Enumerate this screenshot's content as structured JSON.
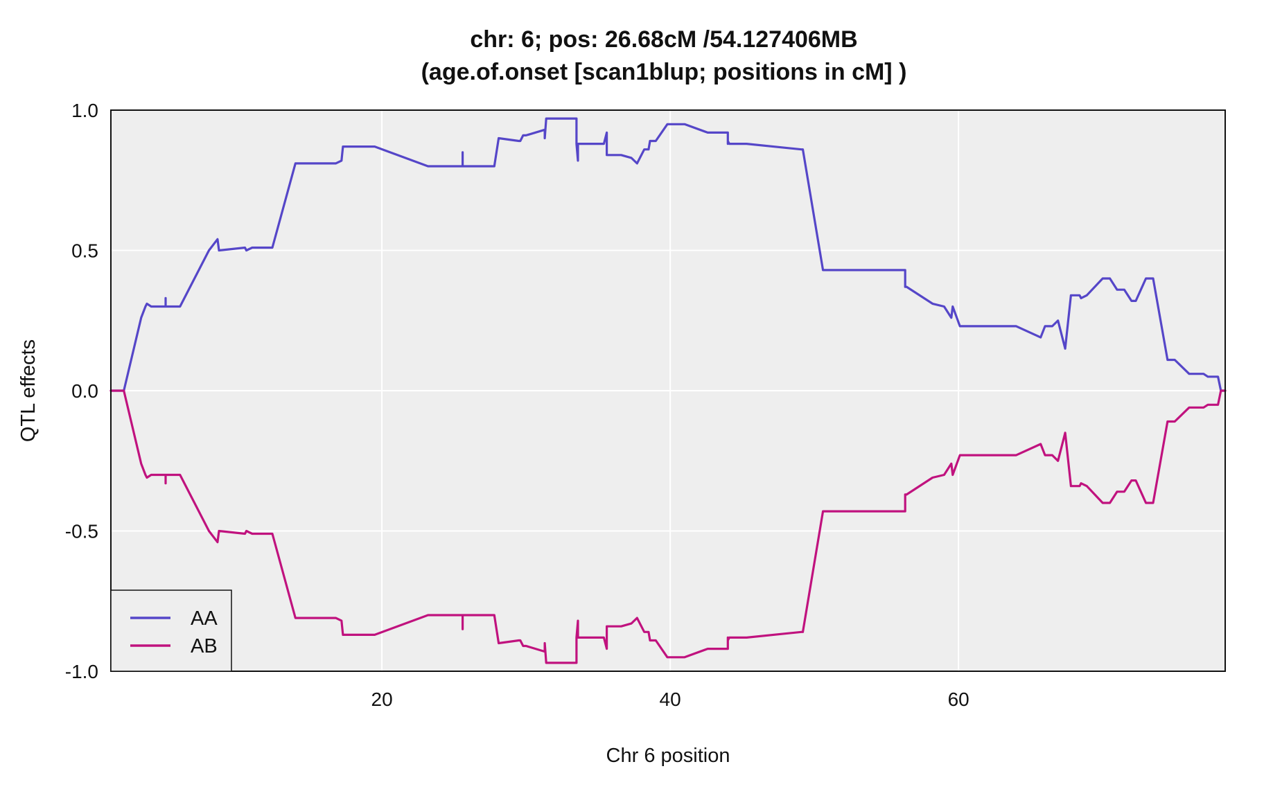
{
  "chart_data": {
    "type": "line",
    "title": "chr: 6; pos: 26.68cM /54.127406MB",
    "subtitle": "(age.of.onset [scan1blup; positions in cM] )",
    "xlabel": "Chr 6 position",
    "ylabel": "QTL effects",
    "xlim": [
      1.2,
      78.5
    ],
    "ylim": [
      -1.0,
      1.0
    ],
    "x_ticks": [
      20,
      40,
      60
    ],
    "x_tick_labels": [
      "20",
      "40",
      "60"
    ],
    "y_ticks": [
      -1.0,
      -0.5,
      0.0,
      0.5,
      1.0
    ],
    "y_tick_labels": [
      "-1.0",
      "-0.5",
      "0.0",
      "0.5",
      "1.0"
    ],
    "grid": true,
    "background": "#eeeeee",
    "legend": {
      "position": "bottom-left",
      "entries": [
        "AA",
        "AB"
      ]
    },
    "series": [
      {
        "name": "AA",
        "color": "#5546c8",
        "x": [
          1.2,
          2.1,
          3.3,
          3.6,
          3.7,
          4.0,
          5.0,
          5.0,
          5.0,
          6.0,
          8.0,
          8.6,
          8.7,
          10.5,
          10.6,
          11.0,
          11.4,
          12.4,
          14.0,
          14.4,
          14.6,
          16.8,
          17.2,
          17.3,
          19.5,
          23.2,
          25.6,
          25.6,
          25.6,
          27.8,
          28.1,
          29.5,
          29.6,
          29.8,
          30.0,
          31.3,
          31.3,
          31.4,
          33.5,
          33.5,
          33.6,
          33.6,
          33.7,
          34.0,
          35.4,
          35.6,
          35.6,
          36.3,
          36.6,
          37.3,
          37.7,
          38.2,
          38.5,
          38.6,
          39.0,
          39.8,
          40.2,
          40.6,
          41.0,
          42.6,
          44.0,
          44.0,
          44.0,
          44.1,
          44.5,
          45.3,
          49.1,
          49.2,
          50.6,
          51.1,
          51.2,
          51.4,
          51.6,
          52.0,
          54.5,
          56.3,
          56.3,
          56.4,
          58.2,
          59.0,
          59.5,
          59.6,
          60.1,
          61.7,
          61.9,
          62.3,
          62.6,
          64.0,
          65.7,
          66.0,
          66.3,
          66.4,
          66.5,
          66.9,
          67.4,
          67.8,
          68.4,
          68.5,
          68.9,
          70.0,
          70.5,
          71.0,
          71.5,
          72.0,
          72.3,
          73.0,
          73.5,
          74.5,
          75.0,
          76.0,
          77.0,
          77.3,
          77.9,
          78.0,
          78.2,
          78.5
        ],
        "values": [
          0.0,
          0.0,
          0.26,
          0.3,
          0.31,
          0.3,
          0.3,
          0.33,
          0.3,
          0.3,
          0.5,
          0.54,
          0.5,
          0.51,
          0.5,
          0.51,
          0.51,
          0.51,
          0.81,
          0.81,
          0.81,
          0.81,
          0.82,
          0.87,
          0.87,
          0.8,
          0.8,
          0.85,
          0.8,
          0.8,
          0.9,
          0.89,
          0.89,
          0.91,
          0.91,
          0.93,
          0.9,
          0.97,
          0.97,
          0.88,
          0.82,
          0.88,
          0.88,
          0.88,
          0.88,
          0.92,
          0.84,
          0.84,
          0.84,
          0.83,
          0.81,
          0.86,
          0.86,
          0.89,
          0.89,
          0.95,
          0.95,
          0.95,
          0.95,
          0.92,
          0.92,
          0.88,
          0.89,
          0.88,
          0.88,
          0.88,
          0.86,
          0.86,
          0.43,
          0.43,
          0.43,
          0.43,
          0.43,
          0.43,
          0.43,
          0.43,
          0.37,
          0.37,
          0.31,
          0.3,
          0.26,
          0.3,
          0.23,
          0.23,
          0.23,
          0.23,
          0.23,
          0.23,
          0.19,
          0.23,
          0.23,
          0.23,
          0.23,
          0.25,
          0.15,
          0.34,
          0.34,
          0.33,
          0.34,
          0.4,
          0.4,
          0.36,
          0.36,
          0.32,
          0.32,
          0.4,
          0.4,
          0.11,
          0.11,
          0.06,
          0.06,
          0.05,
          0.05,
          0.05,
          0.0,
          0.0
        ]
      },
      {
        "name": "AB",
        "color": "#c0127e",
        "x": [
          1.2,
          2.1,
          3.3,
          3.6,
          3.7,
          4.0,
          5.0,
          5.0,
          5.0,
          6.0,
          8.0,
          8.6,
          8.7,
          10.5,
          10.6,
          11.0,
          11.4,
          12.4,
          14.0,
          14.4,
          14.6,
          16.8,
          17.2,
          17.3,
          19.5,
          23.2,
          25.6,
          25.6,
          25.6,
          27.8,
          28.1,
          29.5,
          29.6,
          29.8,
          30.0,
          31.3,
          31.3,
          31.4,
          33.5,
          33.5,
          33.6,
          33.6,
          33.7,
          34.0,
          35.4,
          35.6,
          35.6,
          36.3,
          36.6,
          37.3,
          37.7,
          38.2,
          38.5,
          38.6,
          39.0,
          39.8,
          40.2,
          40.6,
          41.0,
          42.6,
          44.0,
          44.0,
          44.0,
          44.1,
          44.5,
          45.3,
          49.1,
          49.2,
          50.6,
          51.1,
          51.2,
          51.4,
          51.6,
          52.0,
          54.5,
          56.3,
          56.3,
          56.4,
          58.2,
          59.0,
          59.5,
          59.6,
          60.1,
          61.7,
          61.9,
          62.3,
          62.6,
          64.0,
          65.7,
          66.0,
          66.3,
          66.4,
          66.5,
          66.9,
          67.4,
          67.8,
          68.4,
          68.5,
          68.9,
          70.0,
          70.5,
          71.0,
          71.5,
          72.0,
          72.3,
          73.0,
          73.5,
          74.5,
          75.0,
          76.0,
          77.0,
          77.3,
          77.9,
          78.0,
          78.2,
          78.5
        ],
        "values": [
          0.0,
          0.0,
          -0.26,
          -0.3,
          -0.31,
          -0.3,
          -0.3,
          -0.33,
          -0.3,
          -0.3,
          -0.5,
          -0.54,
          -0.5,
          -0.51,
          -0.5,
          -0.51,
          -0.51,
          -0.51,
          -0.81,
          -0.81,
          -0.81,
          -0.81,
          -0.82,
          -0.87,
          -0.87,
          -0.8,
          -0.8,
          -0.85,
          -0.8,
          -0.8,
          -0.9,
          -0.89,
          -0.89,
          -0.91,
          -0.91,
          -0.93,
          -0.9,
          -0.97,
          -0.97,
          -0.88,
          -0.82,
          -0.88,
          -0.88,
          -0.88,
          -0.88,
          -0.92,
          -0.84,
          -0.84,
          -0.84,
          -0.83,
          -0.81,
          -0.86,
          -0.86,
          -0.89,
          -0.89,
          -0.95,
          -0.95,
          -0.95,
          -0.95,
          -0.92,
          -0.92,
          -0.88,
          -0.89,
          -0.88,
          -0.88,
          -0.88,
          -0.86,
          -0.86,
          -0.43,
          -0.43,
          -0.43,
          -0.43,
          -0.43,
          -0.43,
          -0.43,
          -0.43,
          -0.37,
          -0.37,
          -0.31,
          -0.3,
          -0.26,
          -0.3,
          -0.23,
          -0.23,
          -0.23,
          -0.23,
          -0.23,
          -0.23,
          -0.19,
          -0.23,
          -0.23,
          -0.23,
          -0.23,
          -0.25,
          -0.15,
          -0.34,
          -0.34,
          -0.33,
          -0.34,
          -0.4,
          -0.4,
          -0.36,
          -0.36,
          -0.32,
          -0.32,
          -0.4,
          -0.4,
          -0.11,
          -0.11,
          -0.06,
          -0.06,
          -0.05,
          -0.05,
          -0.05,
          0.0,
          0.0
        ]
      }
    ]
  }
}
